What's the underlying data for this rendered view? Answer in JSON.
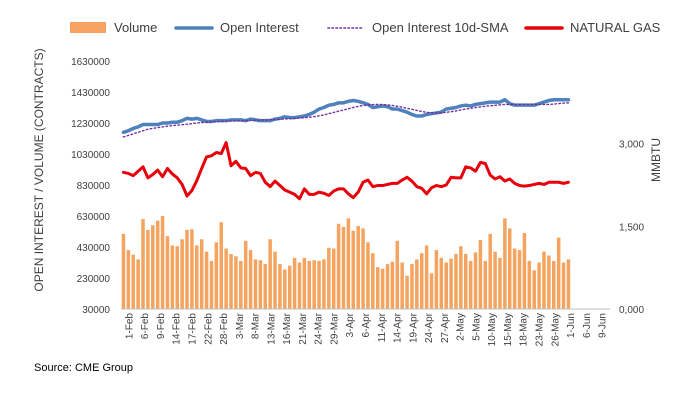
{
  "source": "Source: CME Group",
  "chart_data": {
    "type": "bar",
    "legend_position": "top",
    "grid": false,
    "legend": [
      {
        "name": "Volume",
        "style": "bar",
        "color": "#F4A460"
      },
      {
        "name": "Open Interest",
        "style": "line",
        "color": "#4F81BD"
      },
      {
        "name": "Open Interest 10d-SMA",
        "style": "dotted",
        "color": "#7030A0"
      },
      {
        "name": "NATURAL GAS",
        "style": "line",
        "color": "#E8000B"
      }
    ],
    "ylabel": "OPEN INTEREST / VOLUME (CONTRACTS)",
    "y2label": "MMBTU",
    "ylim": [
      30000,
      1630000
    ],
    "y_ticks": [
      "1630000",
      "1430000",
      "1230000",
      "1030000",
      "830000",
      "630000",
      "430000",
      "230000",
      "30000"
    ],
    "y2lim": [
      0,
      4.5
    ],
    "y2_ticks": [
      {
        "value": 3.0,
        "label": "3,000"
      },
      {
        "value": 1.5,
        "label": "1,500"
      },
      {
        "value": 0.0,
        "label": "0,000"
      }
    ],
    "x_ticks": [
      "1-Feb",
      "6-Feb",
      "9-Feb",
      "14-Feb",
      "17-Feb",
      "22-Feb",
      "28-Feb",
      "3-Mar",
      "8-Mar",
      "13-Mar",
      "16-Mar",
      "21-Mar",
      "24-Mar",
      "29-Mar",
      "3-Apr",
      "6-Apr",
      "11-Apr",
      "14-Apr",
      "19-Apr",
      "24-Apr",
      "27-Apr",
      "2-May",
      "5-May",
      "10-May",
      "15-May",
      "18-May",
      "23-May",
      "26-May",
      "1-Jun",
      "6-Jun",
      "9-Jun"
    ],
    "series": [
      {
        "name": "Volume",
        "type": "bar",
        "color": "#F4A460",
        "values": [
          515000,
          410000,
          380000,
          350000,
          610000,
          540000,
          570000,
          600000,
          630000,
          500000,
          440000,
          435000,
          480000,
          540000,
          545000,
          440000,
          480000,
          400000,
          340000,
          460000,
          590000,
          420000,
          385000,
          370000,
          340000,
          470000,
          410000,
          350000,
          345000,
          320000,
          480000,
          400000,
          320000,
          285000,
          310000,
          360000,
          330000,
          360000,
          340000,
          345000,
          340000,
          350000,
          425000,
          420000,
          580000,
          560000,
          615000,
          535000,
          565000,
          550000,
          460000,
          390000,
          300000,
          290000,
          320000,
          335000,
          470000,
          330000,
          245000,
          320000,
          350000,
          390000,
          440000,
          260000,
          410000,
          360000,
          330000,
          355000,
          385000,
          435000,
          385000,
          340000,
          395000,
          475000,
          340000,
          515000,
          400000,
          360000,
          615000,
          550000,
          420000,
          410000,
          520000,
          340000,
          280000,
          330000,
          400000,
          375000,
          340000,
          490000,
          330000,
          350000
        ]
      },
      {
        "name": "Open Interest",
        "type": "line",
        "color": "#4F81BD",
        "values": [
          1170000,
          1180000,
          1195000,
          1205000,
          1220000,
          1220000,
          1220000,
          1220000,
          1230000,
          1230000,
          1235000,
          1235000,
          1245000,
          1260000,
          1255000,
          1260000,
          1250000,
          1240000,
          1240000,
          1245000,
          1245000,
          1245000,
          1250000,
          1250000,
          1250000,
          1245000,
          1255000,
          1250000,
          1245000,
          1245000,
          1245000,
          1255000,
          1260000,
          1270000,
          1265000,
          1265000,
          1270000,
          1275000,
          1285000,
          1300000,
          1320000,
          1330000,
          1345000,
          1350000,
          1360000,
          1360000,
          1370000,
          1375000,
          1370000,
          1360000,
          1350000,
          1330000,
          1335000,
          1340000,
          1335000,
          1320000,
          1320000,
          1310000,
          1300000,
          1285000,
          1275000,
          1275000,
          1285000,
          1290000,
          1295000,
          1300000,
          1320000,
          1325000,
          1330000,
          1340000,
          1345000,
          1340000,
          1350000,
          1355000,
          1360000,
          1365000,
          1365000,
          1365000,
          1380000,
          1355000,
          1345000,
          1345000,
          1345000,
          1345000,
          1345000,
          1355000,
          1365000,
          1375000,
          1380000,
          1380000,
          1380000,
          1380000
        ]
      },
      {
        "name": "Open Interest 10d-SMA",
        "type": "line",
        "style": "dotted",
        "color": "#7030A0",
        "values": [
          1140000,
          1150000,
          1160000,
          1170000,
          1180000,
          1190000,
          1195000,
          1200000,
          1205000,
          1210000,
          1213000,
          1216000,
          1219000,
          1222000,
          1226000,
          1230000,
          1233000,
          1235000,
          1237000,
          1239000,
          1241000,
          1242000,
          1243000,
          1244000,
          1245000,
          1246000,
          1247000,
          1248000,
          1249000,
          1250000,
          1251000,
          1252000,
          1254000,
          1256000,
          1258000,
          1260000,
          1262000,
          1264000,
          1267000,
          1271000,
          1276000,
          1282000,
          1290000,
          1298000,
          1306000,
          1314000,
          1322000,
          1330000,
          1337000,
          1343000,
          1347000,
          1349000,
          1350000,
          1349000,
          1347000,
          1343000,
          1338000,
          1332000,
          1325000,
          1318000,
          1311000,
          1304000,
          1299000,
          1296000,
          1295000,
          1296000,
          1299000,
          1303000,
          1308000,
          1314000,
          1320000,
          1325000,
          1330000,
          1334000,
          1338000,
          1341000,
          1344000,
          1347000,
          1350000,
          1350000,
          1350000,
          1350000,
          1350000,
          1350000,
          1350000,
          1350000,
          1350000,
          1350000,
          1352000,
          1355000,
          1358000,
          1360000
        ]
      },
      {
        "name": "NATURAL GAS",
        "type": "line",
        "axis": "secondary",
        "color": "#E8000B",
        "values": [
          2.48,
          2.46,
          2.42,
          2.5,
          2.58,
          2.38,
          2.44,
          2.52,
          2.4,
          2.55,
          2.45,
          2.38,
          2.26,
          2.05,
          2.15,
          2.33,
          2.55,
          2.76,
          2.78,
          2.84,
          2.82,
          3.02,
          2.6,
          2.68,
          2.56,
          2.55,
          2.42,
          2.48,
          2.46,
          2.3,
          2.22,
          2.32,
          2.24,
          2.16,
          2.12,
          2.08,
          2.0,
          2.18,
          2.08,
          2.08,
          2.12,
          2.1,
          2.06,
          2.14,
          2.18,
          2.18,
          2.09,
          2.02,
          2.12,
          2.3,
          2.34,
          2.22,
          2.24,
          2.24,
          2.26,
          2.28,
          2.28,
          2.34,
          2.39,
          2.32,
          2.22,
          2.19,
          2.09,
          2.2,
          2.24,
          2.22,
          2.25,
          2.39,
          2.38,
          2.38,
          2.58,
          2.56,
          2.5,
          2.66,
          2.64,
          2.43,
          2.36,
          2.4,
          2.32,
          2.36,
          2.28,
          2.24,
          2.23,
          2.24,
          2.26,
          2.28,
          2.26,
          2.3,
          2.3,
          2.3,
          2.28,
          2.3
        ]
      }
    ]
  }
}
